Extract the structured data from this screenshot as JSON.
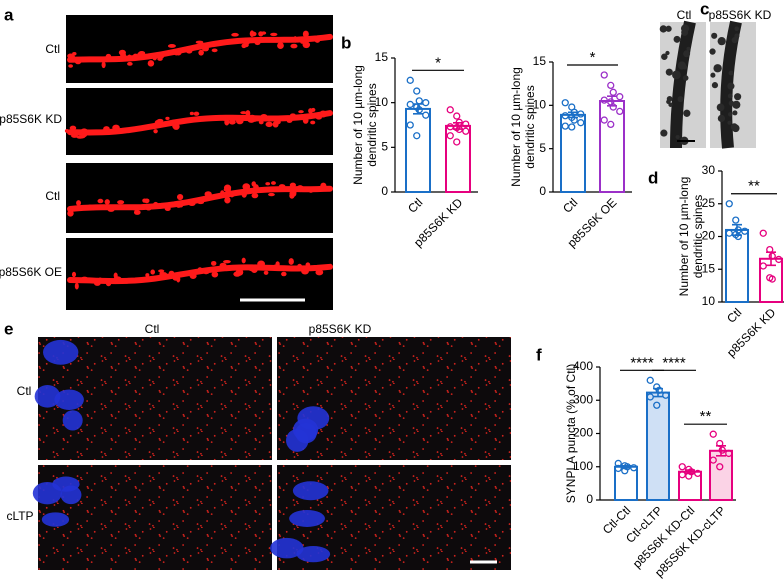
{
  "panel_letters": [
    "a",
    "b",
    "c",
    "d",
    "e",
    "f"
  ],
  "panel_a": {
    "row_labels": [
      "Ctl",
      "p85S6K KD",
      "Ctl",
      "p85S6K OE"
    ]
  },
  "panel_c": {
    "column_labels": [
      "Ctl",
      "p85S6K KD"
    ]
  },
  "panel_e": {
    "column_labels": [
      "Ctl",
      "p85S6K KD"
    ],
    "row_labels": [
      "Ctl",
      "cLTP"
    ]
  },
  "chart_data": [
    {
      "type": "bar",
      "ylabel": [
        "Number of 10 µm-long",
        "dendritic spines"
      ],
      "categories": [
        "Ctl",
        "p85S6K KD"
      ],
      "values": [
        9.3,
        7.4
      ],
      "errors": [
        0.55,
        0.35
      ],
      "points": [
        [
          12.5,
          11.3,
          10.2,
          10,
          9.8,
          9.5,
          9.2,
          8.6,
          7.5,
          6.3
        ],
        [
          9.2,
          8.5,
          7.8,
          7.6,
          7.3,
          7.2,
          7,
          6.8,
          6.3,
          5.6
        ]
      ],
      "edge_colors": [
        "#1a6fc7",
        "#e6007e"
      ],
      "fill_colors": [
        "#ffffff",
        "#ffffff"
      ],
      "ylim": [
        0,
        15
      ],
      "yticks": [
        0,
        5,
        10,
        15
      ],
      "annotations": [
        {
          "text": "*",
          "between": [
            "Ctl",
            "p85S6K KD"
          ]
        }
      ]
    },
    {
      "type": "bar",
      "ylabel": [
        "Number of 10 µm-long",
        "dendritic spines"
      ],
      "categories": [
        "Ctl",
        "p85S6K OE"
      ],
      "values": [
        8.9,
        10.5
      ],
      "errors": [
        0.3,
        0.55
      ],
      "points": [
        [
          10.3,
          9.8,
          9.2,
          9,
          8.8,
          8.6,
          8.3,
          8.0,
          7.6,
          7.5
        ],
        [
          13.5,
          12.3,
          11.5,
          11,
          10.6,
          10.4,
          9.8,
          9.3,
          8.3,
          7.8
        ]
      ],
      "edge_colors": [
        "#1a6fc7",
        "#9b30c8"
      ],
      "fill_colors": [
        "#ffffff",
        "#ffffff"
      ],
      "ylim": [
        0,
        15
      ],
      "yticks": [
        0,
        5,
        10,
        15
      ],
      "annotations": [
        {
          "text": "*",
          "between": [
            "Ctl",
            "p85S6K OE"
          ]
        }
      ]
    },
    {
      "type": "bar",
      "ylabel": [
        "Number of 10 µm-long",
        "dendritic spines"
      ],
      "categories": [
        "Ctl",
        "p85S6K KD"
      ],
      "values": [
        21,
        16.6
      ],
      "errors": [
        0.8,
        1.0
      ],
      "points": [
        [
          25,
          22.5,
          21,
          20.8,
          20.5,
          20.3,
          20
        ],
        [
          20.5,
          18,
          17,
          16.5,
          15.5,
          13.7,
          13.5
        ]
      ],
      "edge_colors": [
        "#1a6fc7",
        "#e6007e"
      ],
      "fill_colors": [
        "#ffffff",
        "#ffffff"
      ],
      "ylim": [
        10,
        30
      ],
      "yticks": [
        10,
        15,
        20,
        25,
        30
      ],
      "annotations": [
        {
          "text": "**",
          "between": [
            "Ctl",
            "p85S6K KD"
          ]
        }
      ]
    },
    {
      "type": "bar",
      "ylabel": [
        "SYNPLA puncta (% of Ctl)"
      ],
      "categories": [
        "Ctl-Ctl",
        "Ctl-cLTP",
        "p85S6K KD-Ctl",
        "p85S6K KD-cLTP"
      ],
      "values": [
        100,
        323,
        85,
        148
      ],
      "errors": [
        3,
        12,
        5,
        15
      ],
      "points": [
        [
          110,
          103,
          100,
          97,
          95,
          88
        ],
        [
          360,
          340,
          330,
          315,
          310,
          285
        ],
        [
          100,
          92,
          85,
          80,
          76,
          72
        ],
        [
          198,
          170,
          150,
          140,
          120,
          100
        ]
      ],
      "edge_colors": [
        "#1a6fc7",
        "#1a6fc7",
        "#e6007e",
        "#e6007e"
      ],
      "fill_colors": [
        "#ffffff",
        "#cfe0f5",
        "#ffffff",
        "#fbd3e6"
      ],
      "ylim": [
        0,
        400
      ],
      "yticks": [
        0,
        100,
        200,
        300,
        400
      ],
      "annotations": [
        {
          "text": "****",
          "between": [
            "Ctl-Ctl",
            "Ctl-cLTP"
          ]
        },
        {
          "text": "****",
          "between": [
            "Ctl-cLTP",
            "p85S6K KD-Ctl"
          ]
        },
        {
          "text": "**",
          "between": [
            "p85S6K KD-Ctl",
            "p85S6K KD-cLTP"
          ]
        }
      ]
    }
  ]
}
